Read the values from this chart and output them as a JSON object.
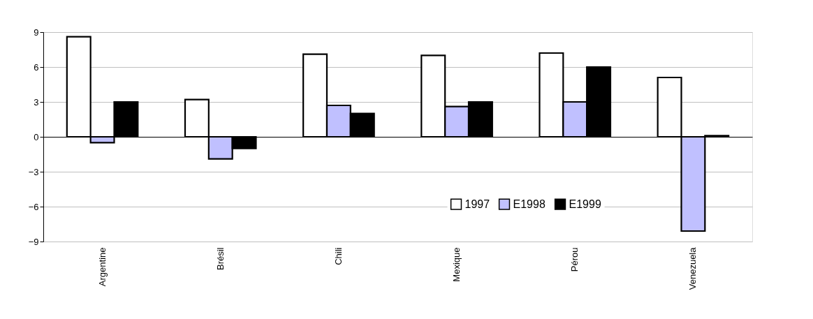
{
  "chart_data": {
    "type": "bar",
    "categories": [
      "Argentine",
      "Brésil",
      "Chili",
      "Mexique",
      "Pérou",
      "Venezuela"
    ],
    "series": [
      {
        "name": "1997",
        "color": "#ffffff",
        "values": [
          8.6,
          3.2,
          7.1,
          7.0,
          7.2,
          5.1
        ]
      },
      {
        "name": "E1998",
        "color": "#c0c0ff",
        "values": [
          -0.5,
          -1.9,
          2.7,
          2.6,
          3.0,
          -8.1
        ]
      },
      {
        "name": "E1999",
        "color": "#000000",
        "values": [
          3.0,
          -1.0,
          2.0,
          3.0,
          6.0,
          0.1
        ]
      }
    ],
    "ylim": [
      -9,
      9
    ],
    "yticks": [
      -9,
      -6,
      -3,
      0,
      3,
      6,
      9
    ],
    "grid": "y",
    "legend": "bottom"
  }
}
